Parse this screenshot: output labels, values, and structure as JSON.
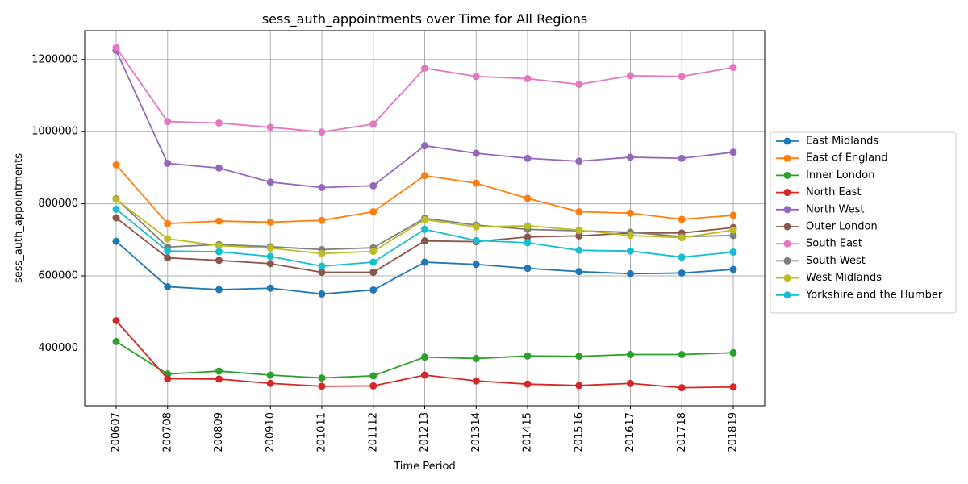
{
  "chart_data": {
    "type": "line",
    "title": "sess_auth_appointments over Time for All Regions",
    "xlabel": "Time Period",
    "ylabel": "sess_auth_appointments",
    "categories": [
      "200607",
      "200708",
      "200809",
      "200910",
      "201011",
      "201112",
      "201213",
      "201314",
      "201415",
      "201516",
      "201617",
      "201718",
      "201819"
    ],
    "ylim": [
      240000,
      1280000
    ],
    "yticks": [
      400000,
      600000,
      800000,
      1000000,
      1200000
    ],
    "ytick_labels": [
      "400000",
      "600000",
      "800000",
      "1000000",
      "1200000"
    ],
    "grid": true,
    "legend_position": "right-outside",
    "series": [
      {
        "name": "East Midlands",
        "color": "#1f77b4",
        "values": [
          696000,
          570000,
          562000,
          566000,
          550000,
          561000,
          638000,
          632000,
          621000,
          612000,
          606000,
          608000,
          618000
        ]
      },
      {
        "name": "East of England",
        "color": "#ff7f0e",
        "values": [
          908000,
          745000,
          752000,
          749000,
          754000,
          778000,
          878000,
          857000,
          815000,
          778000,
          774000,
          757000,
          768000
        ]
      },
      {
        "name": "Inner London",
        "color": "#2ca02c",
        "values": [
          418000,
          328000,
          336000,
          325000,
          317000,
          323000,
          375000,
          371000,
          378000,
          377000,
          382000,
          382000,
          387000
        ]
      },
      {
        "name": "North East",
        "color": "#d62728",
        "values": [
          476000,
          315000,
          314000,
          302000,
          294000,
          295000,
          325000,
          309000,
          300000,
          296000,
          302000,
          290000,
          292000
        ]
      },
      {
        "name": "North West",
        "color": "#9467bd",
        "values": [
          1225000,
          912000,
          899000,
          860000,
          845000,
          850000,
          961000,
          940000,
          926000,
          918000,
          929000,
          926000,
          943000
        ]
      },
      {
        "name": "Outer London",
        "color": "#8c564b",
        "values": [
          761000,
          650000,
          643000,
          634000,
          610000,
          610000,
          697000,
          695000,
          708000,
          711000,
          719000,
          719000,
          734000
        ]
      },
      {
        "name": "South East",
        "color": "#e377c2",
        "values": [
          1233000,
          1028000,
          1024000,
          1012000,
          999000,
          1021000,
          1176000,
          1153000,
          1147000,
          1131000,
          1155000,
          1153000,
          1178000
        ]
      },
      {
        "name": "South West",
        "color": "#7f7f7f",
        "values": [
          814000,
          680000,
          687000,
          681000,
          673000,
          678000,
          760000,
          741000,
          729000,
          725000,
          721000,
          709000,
          712000
        ]
      },
      {
        "name": "West Midlands",
        "color": "#bcbd22",
        "values": [
          812000,
          703000,
          684000,
          677000,
          662000,
          668000,
          756000,
          736000,
          739000,
          727000,
          712000,
          706000,
          727000
        ]
      },
      {
        "name": "Yorkshire and the Humber",
        "color": "#17becf",
        "values": [
          785000,
          669000,
          667000,
          654000,
          627000,
          638000,
          729000,
          698000,
          692000,
          671000,
          669000,
          652000,
          666000
        ]
      }
    ]
  }
}
